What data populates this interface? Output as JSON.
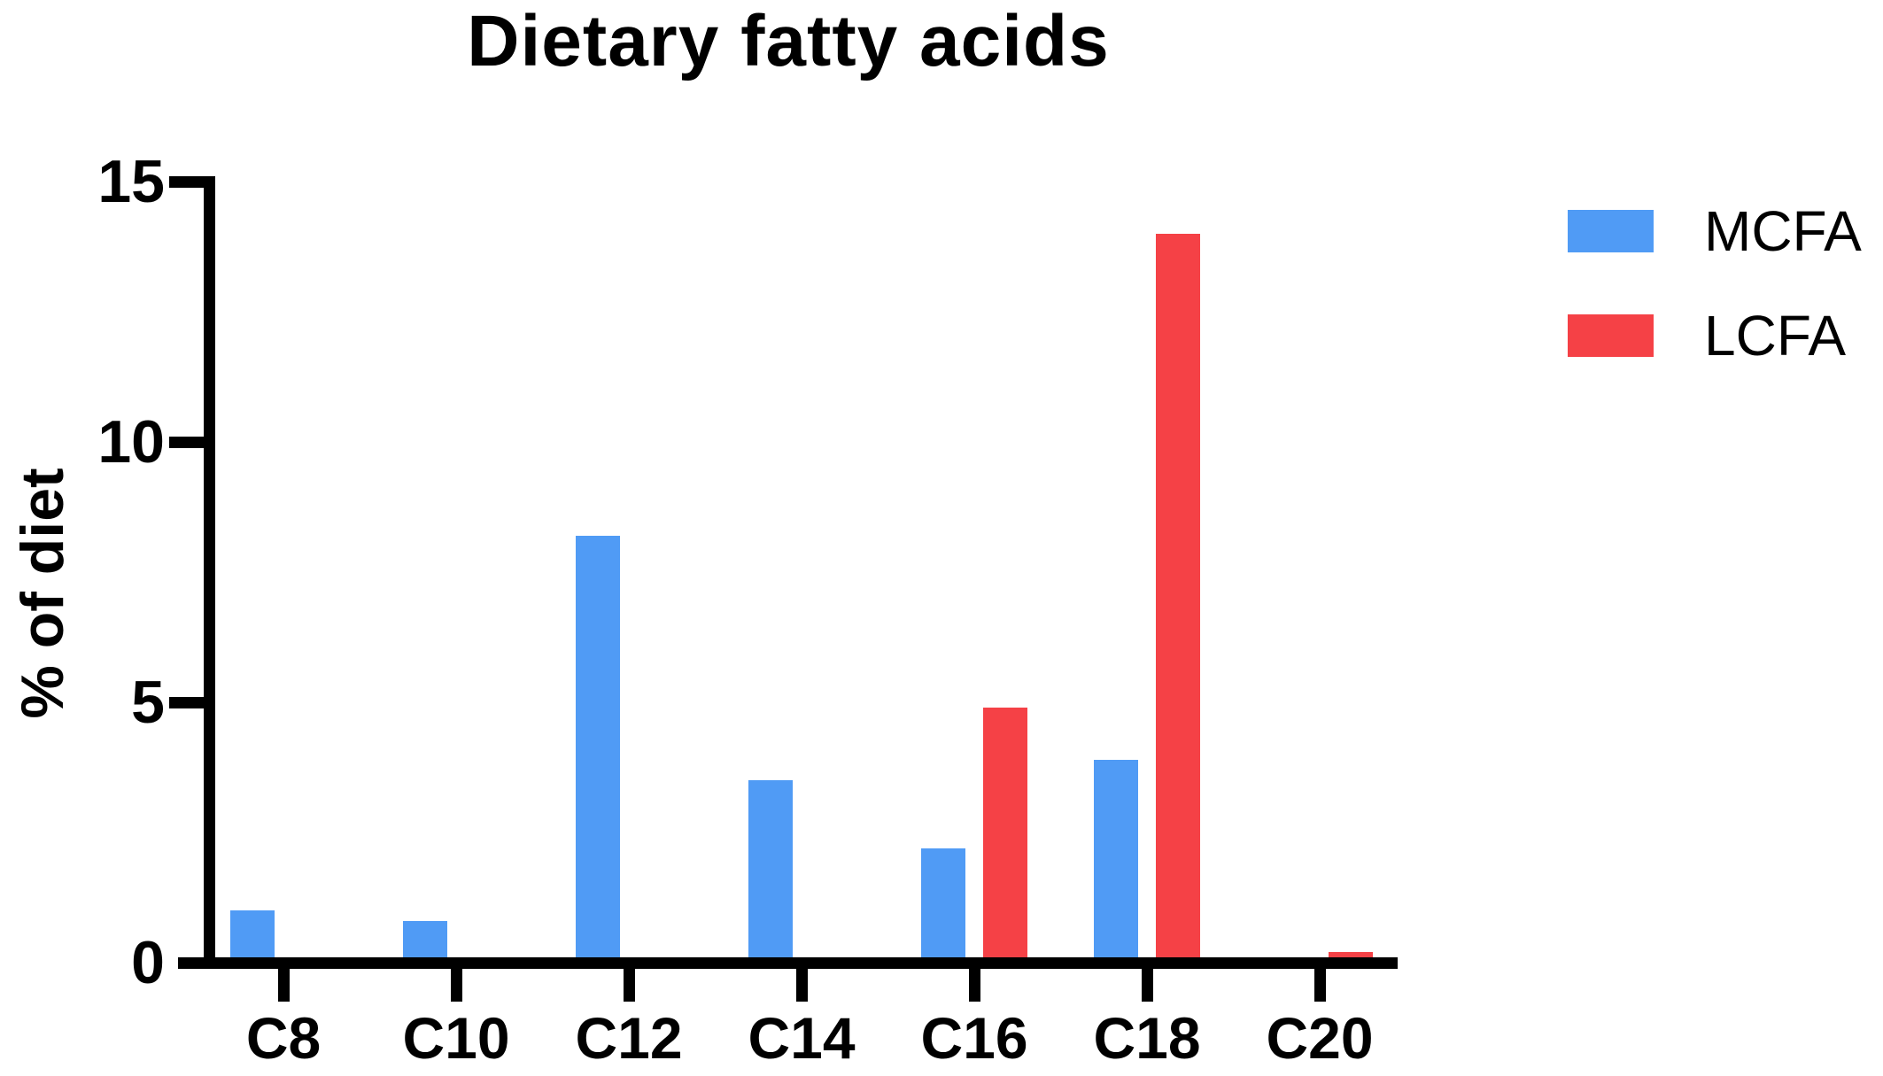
{
  "chart_data": {
    "type": "bar",
    "title": "Dietary fatty acids",
    "xlabel": "",
    "ylabel": "% of diet",
    "categories": [
      "C8",
      "C10",
      "C12",
      "C14",
      "C16",
      "C18",
      "C20"
    ],
    "series": [
      {
        "name": "MCFA",
        "color": "#509BF5",
        "values": [
          1.0,
          0.8,
          8.2,
          3.5,
          2.2,
          3.9,
          0
        ]
      },
      {
        "name": "LCFA",
        "color": "#F54146",
        "values": [
          0,
          0,
          0,
          0,
          4.9,
          14.0,
          0.2
        ]
      }
    ],
    "ylim": [
      0,
      15
    ],
    "yticks": [
      0,
      5,
      10,
      15
    ],
    "grid": false,
    "legend_position": "right",
    "axis_color": "#000000",
    "background_color": "#FFFFFF"
  }
}
